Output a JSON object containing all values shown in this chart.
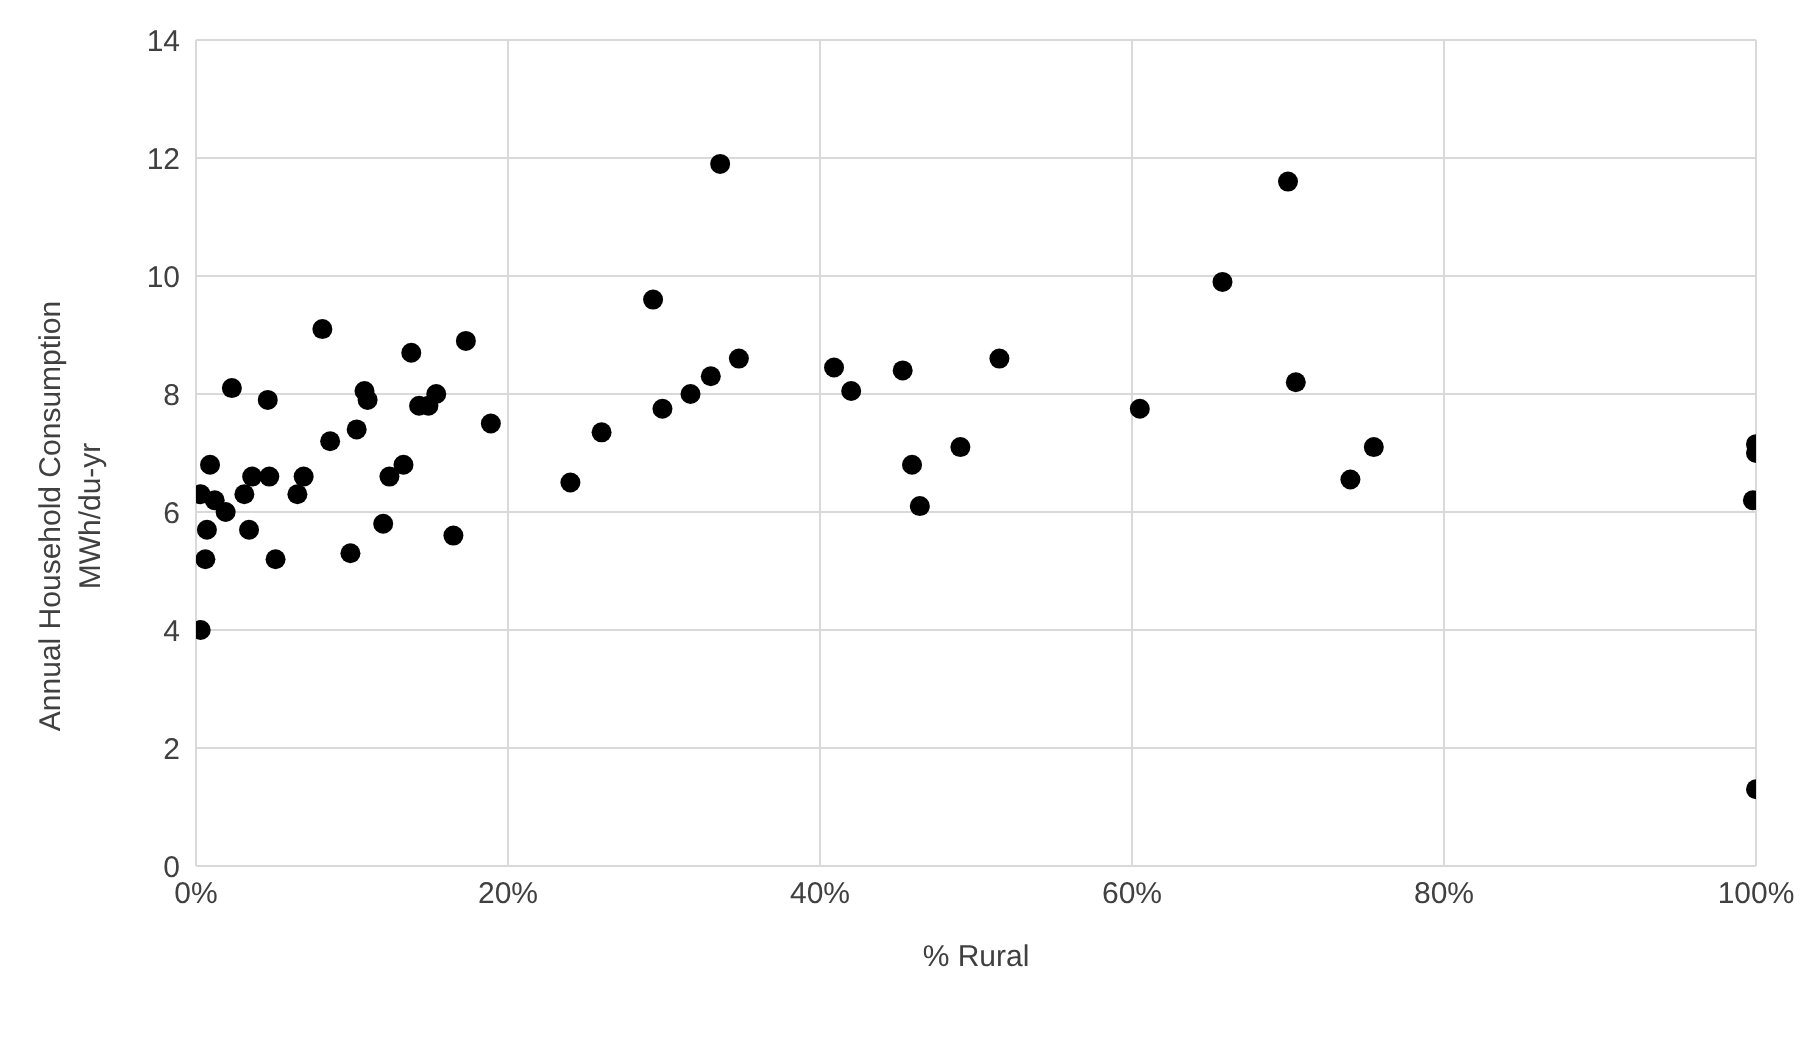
{
  "chart_data": {
    "type": "scatter",
    "xlabel": "% Rural",
    "ylabel": "Annual Household Consumption\nMWh/du-yr",
    "x": [
      0.3,
      0.3,
      0.6,
      0.7,
      0.9,
      1.2,
      1.9,
      2.3,
      3.1,
      3.4,
      3.6,
      4.6,
      4.7,
      5.1,
      6.5,
      6.9,
      8.1,
      8.6,
      9.9,
      10.3,
      10.8,
      11.0,
      12.0,
      12.4,
      13.3,
      13.8,
      14.3,
      14.9,
      15.4,
      16.5,
      17.3,
      18.9,
      24.0,
      26.0,
      29.3,
      29.9,
      31.7,
      33.0,
      33.6,
      34.8,
      40.9,
      42.0,
      45.3,
      45.9,
      46.4,
      49.0,
      51.5,
      60.5,
      65.8,
      70.0,
      70.5,
      74.0,
      75.5,
      100,
      100,
      99.8,
      100
    ],
    "values": [
      4.0,
      6.3,
      5.2,
      5.7,
      6.8,
      6.2,
      6.0,
      8.1,
      6.3,
      5.7,
      6.6,
      7.9,
      6.6,
      5.2,
      6.3,
      6.6,
      9.1,
      7.2,
      5.3,
      7.4,
      8.05,
      7.9,
      5.8,
      6.6,
      6.8,
      8.7,
      7.8,
      7.8,
      8.0,
      5.6,
      8.9,
      7.5,
      6.5,
      7.35,
      9.6,
      7.75,
      8.0,
      8.3,
      11.9,
      8.6,
      8.45,
      8.05,
      8.4,
      6.8,
      6.1,
      7.1,
      8.6,
      7.75,
      9.9,
      11.6,
      8.2,
      6.55,
      7.1,
      7.15,
      7.0,
      6.2,
      1.3
    ],
    "color": "#000000",
    "marker": "circle",
    "grid": true,
    "legend": false,
    "xlim": [
      0,
      100
    ],
    "xticks": [
      {
        "value": 0,
        "label": "0%"
      },
      {
        "value": 20,
        "label": "20%"
      },
      {
        "value": 40,
        "label": "40%"
      },
      {
        "value": 60,
        "label": "60%"
      },
      {
        "value": 80,
        "label": "80%"
      },
      {
        "value": 100,
        "label": "100%"
      }
    ],
    "ylim": [
      0,
      14
    ],
    "yticks": [
      0,
      2,
      4,
      6,
      8,
      10,
      12,
      14
    ]
  }
}
